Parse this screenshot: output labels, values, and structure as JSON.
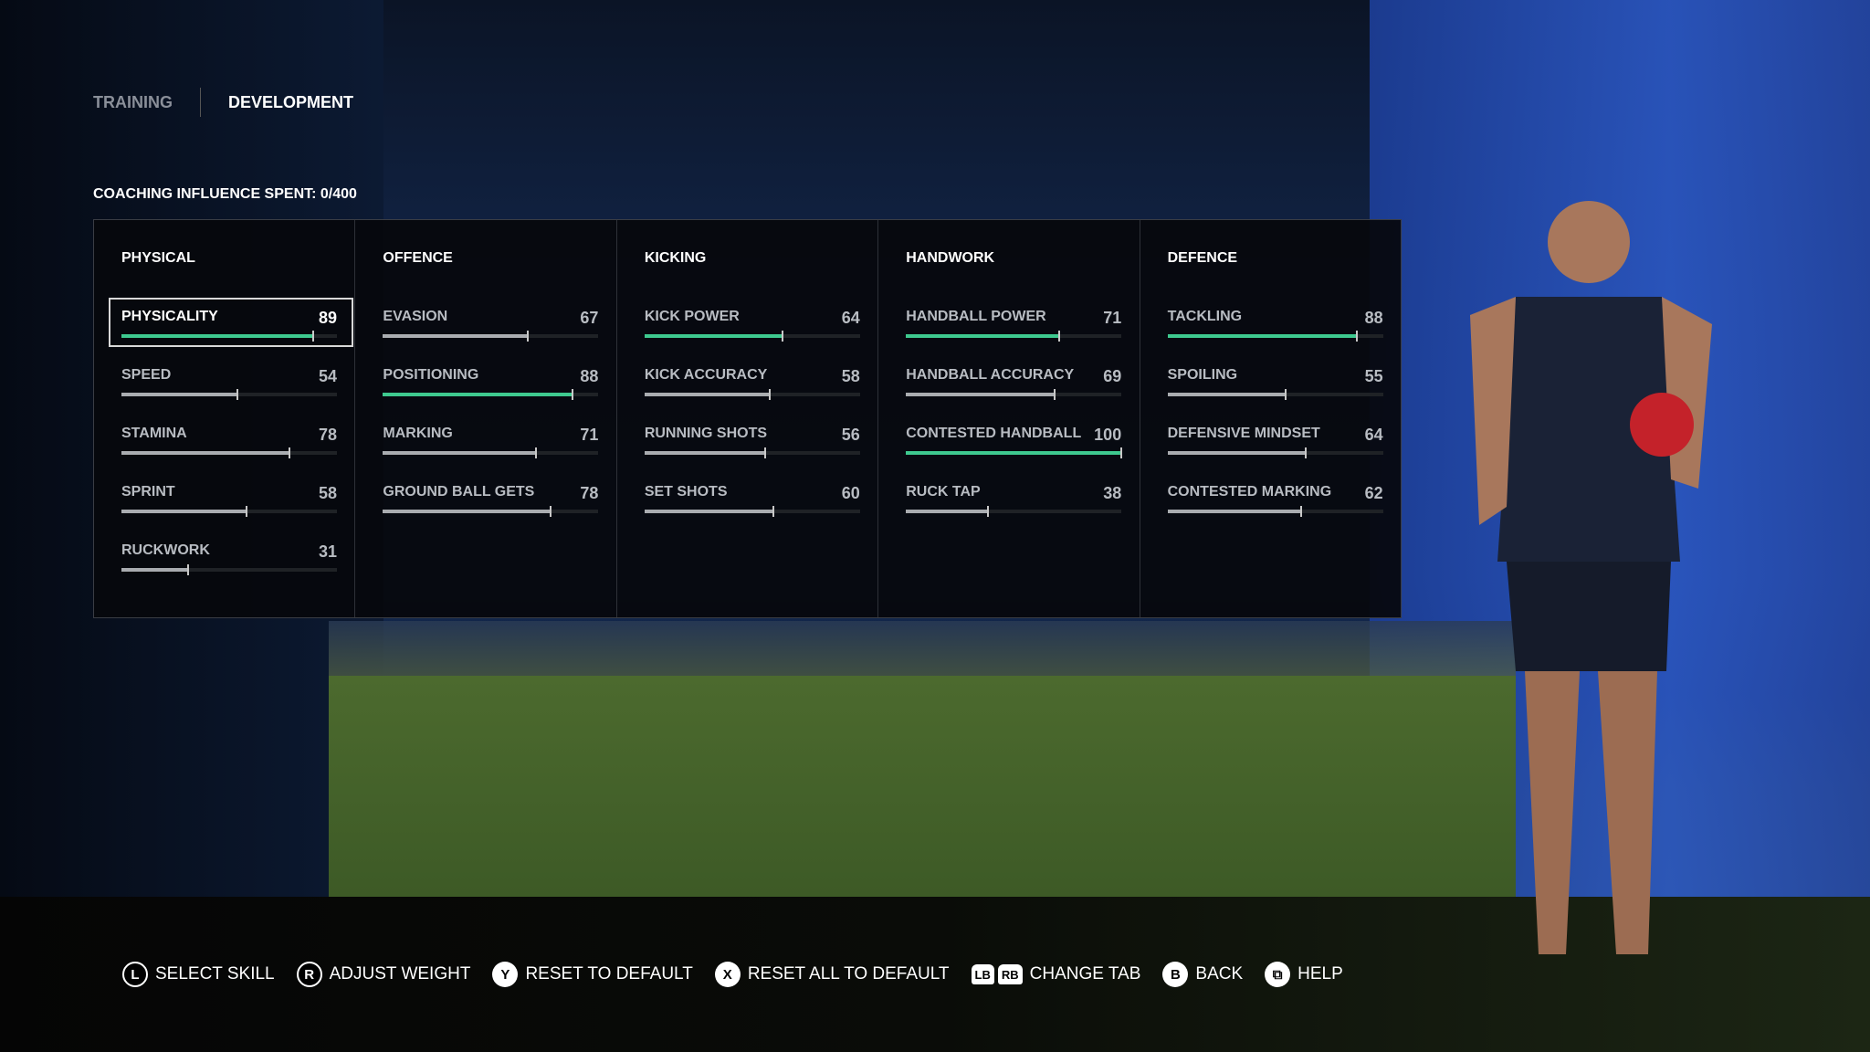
{
  "tabs": [
    {
      "label": "TRAINING",
      "active": false
    },
    {
      "label": "DEVELOPMENT",
      "active": true
    }
  ],
  "coaching_influence": "COACHING INFLUENCE SPENT: 0/400",
  "colors": {
    "highlight_bar": "#3ec98f",
    "normal_bar": "#a9acb0"
  },
  "categories": [
    {
      "title": "PHYSICAL",
      "skills": [
        {
          "name": "PHYSICALITY",
          "value": 89,
          "highlight": true,
          "selected": true
        },
        {
          "name": "SPEED",
          "value": 54,
          "highlight": false
        },
        {
          "name": "STAMINA",
          "value": 78,
          "highlight": false
        },
        {
          "name": "SPRINT",
          "value": 58,
          "highlight": false
        },
        {
          "name": "RUCKWORK",
          "value": 31,
          "highlight": false
        }
      ]
    },
    {
      "title": "OFFENCE",
      "skills": [
        {
          "name": "EVASION",
          "value": 67,
          "highlight": false
        },
        {
          "name": "POSITIONING",
          "value": 88,
          "highlight": true
        },
        {
          "name": "MARKING",
          "value": 71,
          "highlight": false
        },
        {
          "name": "GROUND BALL GETS",
          "value": 78,
          "highlight": false
        }
      ]
    },
    {
      "title": "KICKING",
      "skills": [
        {
          "name": "KICK POWER",
          "value": 64,
          "highlight": true
        },
        {
          "name": "KICK ACCURACY",
          "value": 58,
          "highlight": false
        },
        {
          "name": "RUNNING SHOTS",
          "value": 56,
          "highlight": false
        },
        {
          "name": "SET SHOTS",
          "value": 60,
          "highlight": false
        }
      ]
    },
    {
      "title": "HANDWORK",
      "skills": [
        {
          "name": "HANDBALL POWER",
          "value": 71,
          "highlight": true
        },
        {
          "name": "HANDBALL ACCURACY",
          "value": 69,
          "highlight": false
        },
        {
          "name": "CONTESTED HANDBALL",
          "value": 100,
          "highlight": true
        },
        {
          "name": "RUCK TAP",
          "value": 38,
          "highlight": false
        }
      ]
    },
    {
      "title": "DEFENCE",
      "skills": [
        {
          "name": "TACKLING",
          "value": 88,
          "highlight": true
        },
        {
          "name": "SPOILING",
          "value": 55,
          "highlight": false
        },
        {
          "name": "DEFENSIVE MINDSET",
          "value": 64,
          "highlight": false
        },
        {
          "name": "CONTESTED MARKING",
          "value": 62,
          "highlight": false
        }
      ]
    }
  ],
  "hints": [
    {
      "buttons": [
        "L"
      ],
      "style": "ring",
      "label": "SELECT SKILL"
    },
    {
      "buttons": [
        "R"
      ],
      "style": "ring",
      "label": "ADJUST WEIGHT"
    },
    {
      "buttons": [
        "Y"
      ],
      "style": "solid",
      "label": "RESET TO DEFAULT"
    },
    {
      "buttons": [
        "X"
      ],
      "style": "solid",
      "label": "RESET ALL TO DEFAULT"
    },
    {
      "buttons": [
        "LB",
        "RB"
      ],
      "style": "bumper",
      "label": "CHANGE TAB"
    },
    {
      "buttons": [
        "B"
      ],
      "style": "solid",
      "label": "BACK"
    },
    {
      "buttons": [
        "⧉"
      ],
      "style": "solid",
      "label": "HELP"
    }
  ]
}
